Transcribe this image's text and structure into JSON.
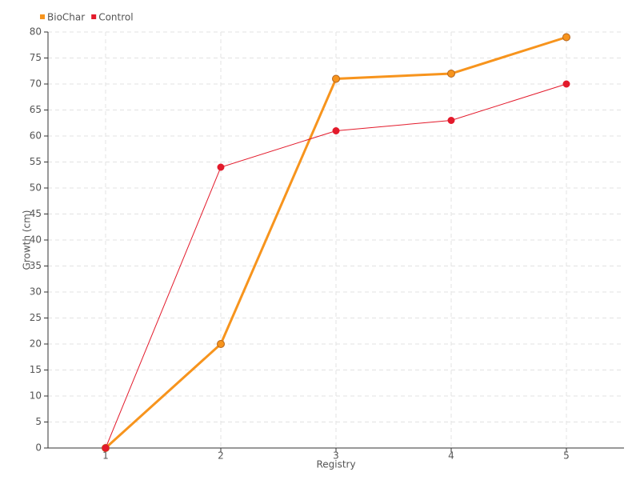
{
  "chart_data": {
    "type": "line",
    "x_label": "Registry",
    "y_label": "Growth (cm)",
    "categories": [
      "1",
      "2",
      "3",
      "4",
      "5"
    ],
    "series": [
      {
        "name": "BioChar",
        "color": "#f7941d",
        "values": [
          0,
          20,
          71,
          72,
          79
        ]
      },
      {
        "name": "Control",
        "color": "#e31a2b",
        "values": [
          0,
          54,
          61,
          63,
          70
        ]
      }
    ],
    "ylim": [
      0,
      80
    ],
    "yticks": [
      0,
      5,
      10,
      15,
      20,
      25,
      30,
      35,
      40,
      45,
      50,
      55,
      60,
      65,
      70,
      75,
      80
    ],
    "grid": true,
    "legend": "top-left"
  }
}
